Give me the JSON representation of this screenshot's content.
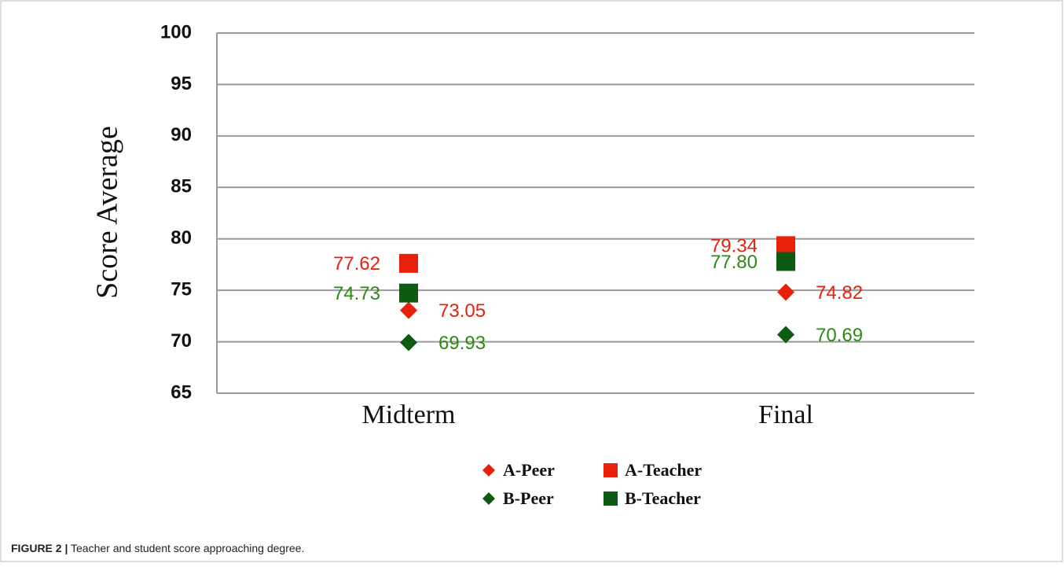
{
  "figure_label": "FIGURE 2 |",
  "caption": "Teacher and student score approaching degree.",
  "chart_data": {
    "type": "scatter",
    "y_label": "Score Average",
    "categories": [
      "Midterm",
      "Final"
    ],
    "ylim": [
      65,
      100
    ],
    "yticks": [
      65,
      70,
      75,
      80,
      85,
      90,
      95,
      100
    ],
    "grid": true,
    "series": [
      {
        "name": "A-Peer",
        "color": "#e8200c",
        "marker": "diamond",
        "values": [
          73.05,
          74.82
        ],
        "value_labels": [
          "73.05",
          "74.82"
        ]
      },
      {
        "name": "A-Teacher",
        "color": "#e8200c",
        "marker": "square",
        "values": [
          77.62,
          79.34
        ],
        "value_labels": [
          "77.62",
          "79.34"
        ]
      },
      {
        "name": "B-Peer",
        "color": "#0d5a12",
        "marker": "diamond",
        "values": [
          69.93,
          70.69
        ],
        "value_labels": [
          "69.93",
          "70.69"
        ]
      },
      {
        "name": "B-Teacher",
        "color": "#0d5a12",
        "marker": "square",
        "values": [
          74.73,
          77.8
        ],
        "value_labels": [
          "74.73",
          "77.80"
        ]
      }
    ]
  }
}
